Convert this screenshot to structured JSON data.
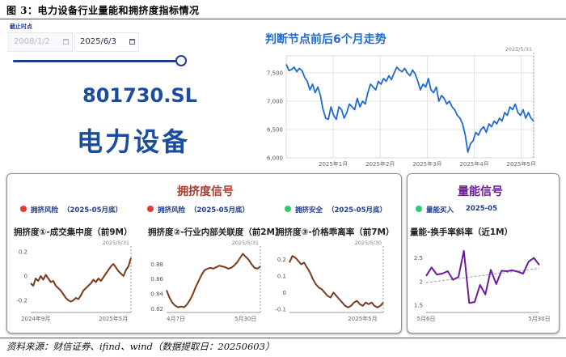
{
  "figure_title": "图 3：电力设备行业量能和拥挤度指标情况",
  "source": "资料来源：财信证券、ifind、wind（数据提取日：20250603）",
  "date_filter": {
    "label": "截止时点",
    "start": "2008/1/2",
    "end": "2025/6/3",
    "slider_fraction": 1.0
  },
  "industry": {
    "code": "801730.SL",
    "name": "电力设备"
  },
  "trend": {
    "title": "判断节点前后6个月走势",
    "marker": "2025/5/31"
  },
  "crowding": {
    "title": "拥挤度信号",
    "signals": [
      {
        "status": "拥挤风险",
        "period": "（2025-05月底）",
        "color": "#e53935"
      },
      {
        "status": "拥挤风险",
        "period": "（2025-05月底）",
        "color": "#e53935"
      },
      {
        "status": "拥挤安全",
        "period": "（2025-05月底）",
        "color": "#2ecc71"
      }
    ]
  },
  "volume": {
    "title": "量能信号",
    "signal": {
      "status": "量能买入",
      "period": "2025-05",
      "color": "#2ecc71"
    }
  },
  "chart_data": [
    {
      "type": "line",
      "title": "判断节点前后6个月走势",
      "x_ticks": [
        "2025年1月",
        "2025年2月",
        "2025年3月",
        "2025年4月",
        "2025年5月"
      ],
      "y_ticks": [
        "6,000",
        "6,500",
        "7,000",
        "7,500"
      ],
      "ylim": [
        6000,
        7800
      ],
      "annotation": "2025/5/31",
      "color": "#1f6bd1",
      "values": [
        7650,
        7540,
        7560,
        7600,
        7520,
        7580,
        7540,
        7420,
        7350,
        7200,
        7300,
        7150,
        7250,
        7100,
        6850,
        6700,
        6680,
        6900,
        6750,
        6680,
        6900,
        6850,
        6700,
        6800,
        6950,
        6900,
        6850,
        7050,
        6900,
        7000,
        6950,
        7150,
        7300,
        7250,
        7200,
        7350,
        7300,
        7400,
        7350,
        7450,
        7380,
        7500,
        7600,
        7550,
        7520,
        7580,
        7500,
        7450,
        7550,
        7480,
        7350,
        7200,
        7300,
        7250,
        7400,
        7200,
        7150,
        7250,
        7000,
        7100,
        7050,
        6950,
        7000,
        6900,
        6850,
        6750,
        6700,
        6600,
        6400,
        6100,
        6250,
        6300,
        6450,
        6400,
        6500,
        6550,
        6450,
        6600,
        6550,
        6650,
        6600,
        6700,
        6650,
        6800,
        6750,
        6900,
        6850,
        6950,
        6800,
        6750,
        6850,
        6700,
        6800,
        6700,
        6650
      ]
    },
    {
      "type": "line",
      "title": "拥挤度①-成交集中度（前9M）",
      "x_ticks": [
        "2024年9月",
        "2025年5月"
      ],
      "y_ticks": [
        "0.2",
        "0",
        "-0.2"
      ],
      "ylim": [
        -0.3,
        0.22
      ],
      "annotation": "2025/5/31",
      "color": "#7a3b1c",
      "values": [
        -0.06,
        -0.08,
        -0.02,
        -0.04,
        0.0,
        -0.03,
        0.01,
        -0.02,
        -0.05,
        -0.04,
        -0.08,
        -0.1,
        -0.12,
        -0.15,
        -0.18,
        -0.2,
        -0.21,
        -0.2,
        -0.18,
        -0.19,
        -0.16,
        -0.12,
        -0.1,
        -0.08,
        -0.06,
        -0.03,
        -0.05,
        -0.02,
        -0.04,
        -0.01,
        0.02,
        0.05,
        0.08,
        0.1,
        0.07,
        0.04,
        0.02,
        0.0,
        0.05,
        0.08,
        0.15
      ]
    },
    {
      "type": "line",
      "title": "拥挤度②-行业内部关联度（前2M）",
      "x_ticks": [
        "4月7日",
        "5月30日"
      ],
      "y_ticks": [
        "0.88",
        "0.86",
        "0.84",
        "0.82"
      ],
      "ylim": [
        0.815,
        0.9
      ],
      "annotation": "2025/5/31",
      "color": "#7a3b1c",
      "values": [
        0.845,
        0.835,
        0.828,
        0.824,
        0.822,
        0.823,
        0.822,
        0.826,
        0.832,
        0.84,
        0.85,
        0.858,
        0.866,
        0.872,
        0.874,
        0.875,
        0.874,
        0.876,
        0.878,
        0.877,
        0.876,
        0.874,
        0.875,
        0.878,
        0.882,
        0.888,
        0.894,
        0.89,
        0.886,
        0.88,
        0.875,
        0.874,
        0.877
      ]
    },
    {
      "type": "line",
      "title": "拥挤度③-价格乖离率（前7M）",
      "x_ticks": [
        "2025年5月"
      ],
      "y_ticks": [
        "0.2",
        "0.1",
        "0",
        "-0.1"
      ],
      "ylim": [
        -0.12,
        0.26
      ],
      "annotation": "2025/5/30",
      "color": "#7a3b1c",
      "values": [
        0.18,
        0.22,
        0.21,
        0.19,
        0.17,
        0.18,
        0.15,
        0.12,
        0.08,
        0.05,
        0.03,
        0.02,
        0.0,
        -0.02,
        -0.03,
        0.0,
        -0.02,
        -0.04,
        -0.06,
        -0.08,
        -0.09,
        -0.08,
        -0.06,
        -0.05,
        -0.07,
        -0.08,
        -0.06,
        -0.07,
        -0.06,
        -0.08,
        -0.09,
        -0.08,
        -0.06
      ]
    },
    {
      "type": "line",
      "title": "量能-换手率斜率（近1M）",
      "x_ticks": [
        "5月6日",
        "5月30日"
      ],
      "y_ticks": [
        "2.5",
        "2",
        "1.5"
      ],
      "ylim": [
        1.35,
        2.75
      ],
      "annotation": "",
      "color": "#6a1b9a",
      "trend_color": "#9e9e9e",
      "values": [
        2.12,
        2.3,
        2.15,
        2.17,
        2.22,
        2.04,
        2.1,
        2.65,
        1.55,
        1.57,
        1.93,
        1.73,
        2.25,
        1.95,
        2.23,
        2.22,
        2.24,
        2.21,
        2.17,
        2.42,
        2.5,
        2.35
      ],
      "trend": [
        1.98,
        2.28
      ]
    }
  ]
}
